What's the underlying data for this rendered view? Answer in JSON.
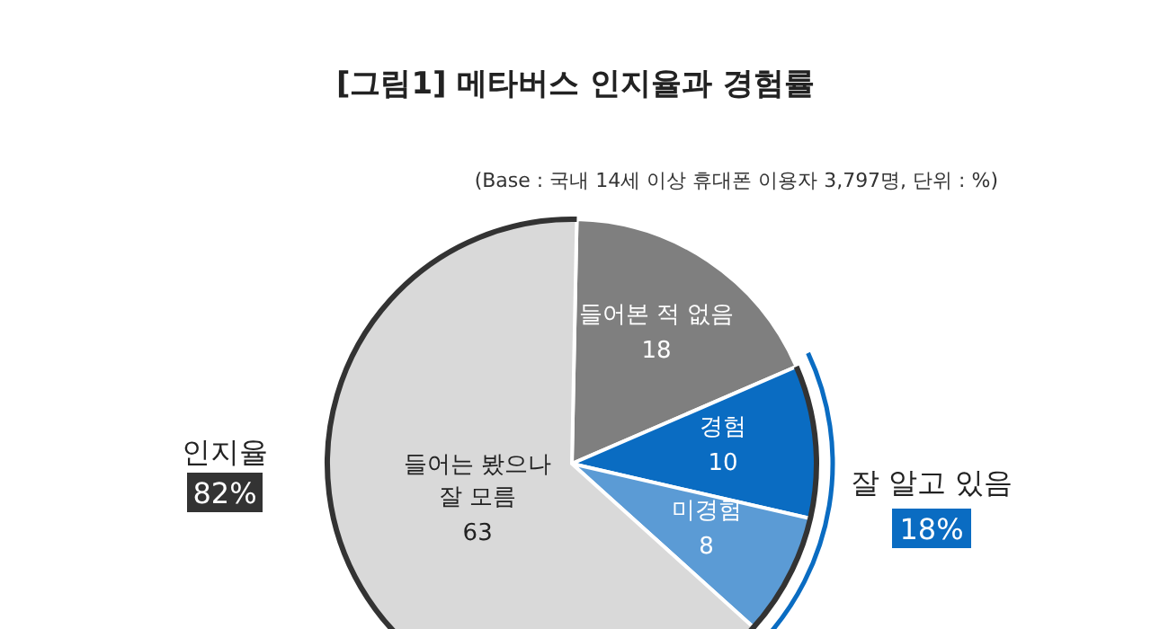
{
  "chart_data": {
    "type": "pie",
    "title": "[그림1] 메타버스 인지율과 경험률",
    "subtitle": "(Base : 국내 14세 이상 휴대폰 이용자 3,797명, 단위 : %)",
    "categories": [
      "들어본 적 없음",
      "경험",
      "미경험",
      "들어는 봤으나 잘 모름"
    ],
    "values": [
      18,
      10,
      8,
      63
    ],
    "colors": [
      "#7f7f7f",
      "#0a6cc2",
      "#5b9bd5",
      "#d9d9d9"
    ],
    "data_labels": true,
    "annotations": [
      "인지율",
      "82%",
      "잘 알고 있음",
      "18%"
    ]
  }
}
